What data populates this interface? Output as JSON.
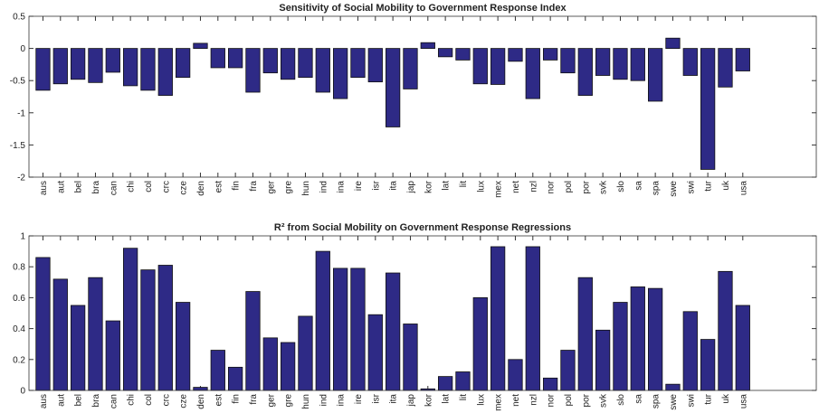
{
  "chart_data": [
    {
      "type": "bar",
      "title": "Sensitivity of Social Mobility to Government Response Index",
      "categories": [
        "aus",
        "aut",
        "bel",
        "bra",
        "can",
        "chi",
        "col",
        "crc",
        "cze",
        "den",
        "est",
        "fin",
        "fra",
        "ger",
        "gre",
        "hun",
        "ind",
        "ina",
        "ire",
        "isr",
        "ita",
        "jap",
        "kor",
        "lat",
        "lit",
        "lux",
        "mex",
        "net",
        "nzl",
        "nor",
        "pol",
        "por",
        "svk",
        "slo",
        "sa",
        "spa",
        "swe",
        "swi",
        "tur",
        "uk",
        "usa"
      ],
      "values": [
        -0.65,
        -0.55,
        -0.48,
        -0.53,
        -0.37,
        -0.58,
        -0.65,
        -0.73,
        -0.45,
        0.08,
        -0.3,
        -0.3,
        -0.68,
        -0.38,
        -0.48,
        -0.45,
        -0.68,
        -0.78,
        -0.45,
        -0.52,
        -1.22,
        -0.63,
        0.09,
        -0.13,
        -0.18,
        -0.55,
        -0.56,
        -0.2,
        -0.78,
        -0.18,
        -0.38,
        -0.73,
        -0.42,
        -0.48,
        -0.5,
        -0.82,
        0.16,
        -0.42,
        -1.88,
        -0.6,
        -0.35
      ],
      "color": "#2e2a86",
      "ylim": [
        -2,
        0.5
      ],
      "yticks": [
        -2,
        -1.5,
        -1,
        -0.5,
        0,
        0.5
      ]
    },
    {
      "type": "bar",
      "title": "R² from Social Mobility on Government Response Regressions",
      "categories": [
        "aus",
        "aut",
        "bel",
        "bra",
        "can",
        "chi",
        "col",
        "crc",
        "cze",
        "den",
        "est",
        "fin",
        "fra",
        "ger",
        "gre",
        "hun",
        "ind",
        "ina",
        "ire",
        "isr",
        "ita",
        "jap",
        "kor",
        "lat",
        "lit",
        "lux",
        "mex",
        "net",
        "nzl",
        "nor",
        "pol",
        "por",
        "svk",
        "slo",
        "sa",
        "spa",
        "swe",
        "swi",
        "tur",
        "uk",
        "usa"
      ],
      "values": [
        0.86,
        0.72,
        0.55,
        0.73,
        0.45,
        0.92,
        0.78,
        0.81,
        0.57,
        0.02,
        0.26,
        0.15,
        0.64,
        0.34,
        0.31,
        0.48,
        0.9,
        0.79,
        0.79,
        0.49,
        0.76,
        0.43,
        0.01,
        0.09,
        0.12,
        0.6,
        0.93,
        0.2,
        0.93,
        0.08,
        0.26,
        0.73,
        0.39,
        0.57,
        0.67,
        0.66,
        0.04,
        0.51,
        0.33,
        0.77,
        0.55
      ],
      "color": "#2e2a86",
      "ylim": [
        0,
        1
      ],
      "yticks": [
        0,
        0.2,
        0.4,
        0.6,
        0.8,
        1
      ]
    }
  ]
}
